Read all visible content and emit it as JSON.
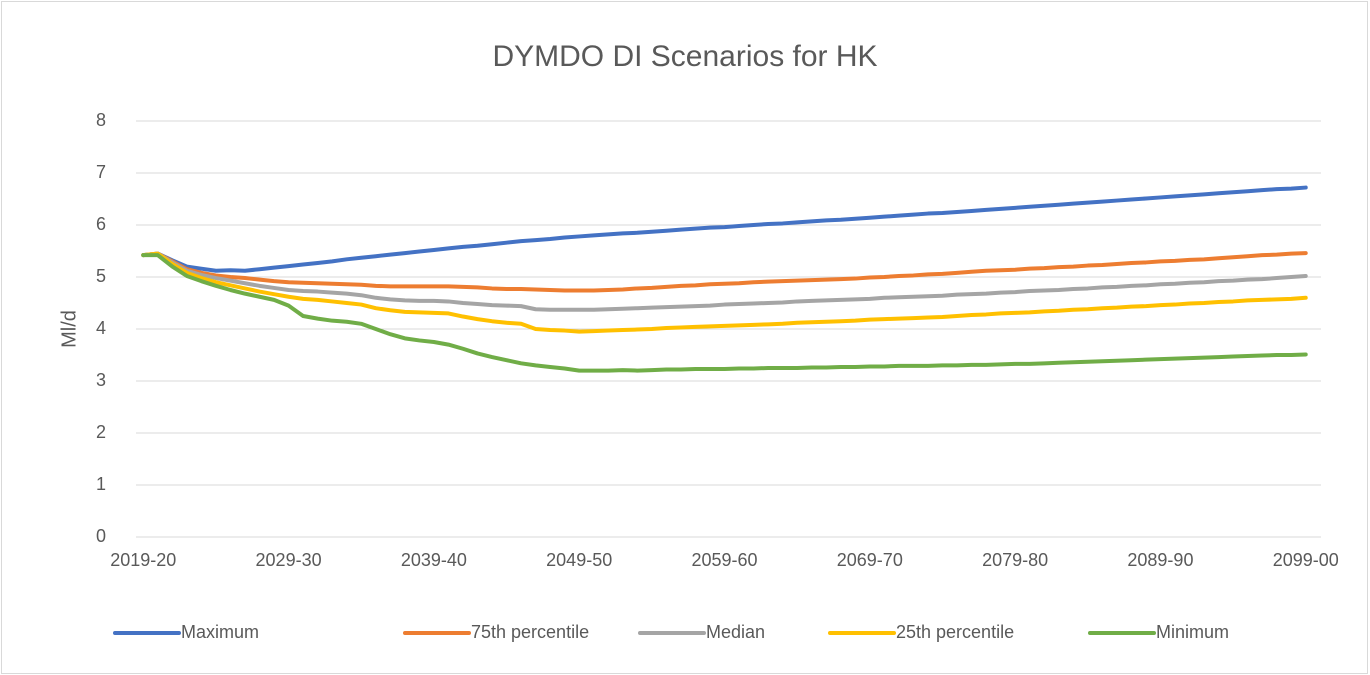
{
  "chart_data": {
    "type": "line",
    "title": "DYMDO DI Scenarios for HK",
    "y_label": "Ml/d",
    "categories": [
      "2019-20",
      null,
      null,
      null,
      null,
      null,
      null,
      null,
      null,
      null,
      "2029-30",
      null,
      null,
      null,
      null,
      null,
      null,
      null,
      null,
      null,
      "2039-40",
      null,
      null,
      null,
      null,
      null,
      null,
      null,
      null,
      null,
      "2049-50",
      null,
      null,
      null,
      null,
      null,
      null,
      null,
      null,
      null,
      "2059-60",
      null,
      null,
      null,
      null,
      null,
      null,
      null,
      null,
      null,
      "2069-70",
      null,
      null,
      null,
      null,
      null,
      null,
      null,
      null,
      null,
      "2079-80",
      null,
      null,
      null,
      null,
      null,
      null,
      null,
      null,
      null,
      "2089-90",
      null,
      null,
      null,
      null,
      null,
      null,
      null,
      null,
      null,
      "2099-00"
    ],
    "series": [
      {
        "name": "Maximum",
        "color": "#4472c4",
        "values": [
          5.42,
          5.45,
          5.32,
          5.2,
          5.16,
          5.12,
          5.13,
          5.12,
          5.15,
          5.18,
          5.21,
          5.24,
          5.27,
          5.3,
          5.34,
          5.37,
          5.4,
          5.43,
          5.46,
          5.49,
          5.52,
          5.55,
          5.58,
          5.6,
          5.63,
          5.66,
          5.69,
          5.71,
          5.73,
          5.76,
          5.78,
          5.8,
          5.82,
          5.84,
          5.85,
          5.87,
          5.89,
          5.91,
          5.93,
          5.95,
          5.96,
          5.98,
          6.0,
          6.02,
          6.03,
          6.05,
          6.07,
          6.09,
          6.1,
          6.12,
          6.14,
          6.16,
          6.18,
          6.2,
          6.22,
          6.23,
          6.25,
          6.27,
          6.29,
          6.31,
          6.33,
          6.35,
          6.37,
          6.39,
          6.41,
          6.43,
          6.45,
          6.47,
          6.49,
          6.51,
          6.53,
          6.55,
          6.57,
          6.59,
          6.61,
          6.63,
          6.65,
          6.67,
          6.69,
          6.7,
          6.72
        ]
      },
      {
        "name": "75th percentile",
        "color": "#ed7d31",
        "values": [
          5.42,
          5.45,
          5.3,
          5.15,
          5.08,
          5.03,
          5.0,
          4.98,
          4.95,
          4.92,
          4.9,
          4.89,
          4.88,
          4.87,
          4.86,
          4.85,
          4.83,
          4.82,
          4.82,
          4.82,
          4.82,
          4.82,
          4.81,
          4.8,
          4.78,
          4.77,
          4.77,
          4.76,
          4.75,
          4.74,
          4.74,
          4.74,
          4.75,
          4.76,
          4.78,
          4.79,
          4.81,
          4.83,
          4.84,
          4.86,
          4.87,
          4.88,
          4.9,
          4.91,
          4.92,
          4.93,
          4.94,
          4.95,
          4.96,
          4.97,
          4.99,
          5.0,
          5.02,
          5.03,
          5.05,
          5.06,
          5.08,
          5.1,
          5.12,
          5.13,
          5.14,
          5.16,
          5.17,
          5.19,
          5.2,
          5.22,
          5.23,
          5.25,
          5.27,
          5.28,
          5.3,
          5.31,
          5.33,
          5.34,
          5.36,
          5.38,
          5.4,
          5.42,
          5.43,
          5.45,
          5.46
        ]
      },
      {
        "name": "Median",
        "color": "#a5a5a5",
        "values": [
          5.42,
          5.45,
          5.28,
          5.12,
          5.04,
          4.98,
          4.93,
          4.88,
          4.83,
          4.79,
          4.75,
          4.73,
          4.72,
          4.7,
          4.68,
          4.65,
          4.6,
          4.57,
          4.55,
          4.54,
          4.54,
          4.53,
          4.5,
          4.48,
          4.46,
          4.45,
          4.44,
          4.38,
          4.37,
          4.37,
          4.37,
          4.37,
          4.38,
          4.39,
          4.4,
          4.41,
          4.42,
          4.43,
          4.44,
          4.45,
          4.47,
          4.48,
          4.49,
          4.5,
          4.51,
          4.53,
          4.54,
          4.55,
          4.56,
          4.57,
          4.58,
          4.6,
          4.61,
          4.62,
          4.63,
          4.64,
          4.66,
          4.67,
          4.68,
          4.7,
          4.71,
          4.73,
          4.74,
          4.75,
          4.77,
          4.78,
          4.8,
          4.81,
          4.83,
          4.84,
          4.86,
          4.87,
          4.89,
          4.9,
          4.92,
          4.93,
          4.95,
          4.96,
          4.98,
          5.0,
          5.02
        ]
      },
      {
        "name": "25th percentile",
        "color": "#ffc000",
        "values": [
          5.42,
          5.45,
          5.25,
          5.08,
          4.98,
          4.9,
          4.84,
          4.78,
          4.72,
          4.67,
          4.62,
          4.58,
          4.56,
          4.53,
          4.5,
          4.47,
          4.4,
          4.36,
          4.33,
          4.32,
          4.31,
          4.3,
          4.24,
          4.19,
          4.15,
          4.12,
          4.1,
          4.0,
          3.98,
          3.97,
          3.95,
          3.96,
          3.97,
          3.98,
          3.99,
          4.0,
          4.02,
          4.03,
          4.04,
          4.05,
          4.06,
          4.07,
          4.08,
          4.09,
          4.1,
          4.12,
          4.13,
          4.14,
          4.15,
          4.16,
          4.18,
          4.19,
          4.2,
          4.21,
          4.22,
          4.23,
          4.25,
          4.27,
          4.28,
          4.3,
          4.31,
          4.32,
          4.34,
          4.35,
          4.37,
          4.38,
          4.4,
          4.41,
          4.43,
          4.44,
          4.46,
          4.47,
          4.49,
          4.5,
          4.52,
          4.53,
          4.55,
          4.56,
          4.57,
          4.58,
          4.6
        ]
      },
      {
        "name": "Minimum",
        "color": "#70ad47",
        "values": [
          5.42,
          5.42,
          5.2,
          5.02,
          4.92,
          4.83,
          4.75,
          4.68,
          4.62,
          4.56,
          4.45,
          4.25,
          4.2,
          4.16,
          4.14,
          4.1,
          4.0,
          3.9,
          3.82,
          3.78,
          3.75,
          3.7,
          3.62,
          3.53,
          3.46,
          3.4,
          3.34,
          3.3,
          3.27,
          3.24,
          3.2,
          3.2,
          3.2,
          3.21,
          3.2,
          3.21,
          3.22,
          3.22,
          3.23,
          3.23,
          3.23,
          3.24,
          3.24,
          3.25,
          3.25,
          3.25,
          3.26,
          3.26,
          3.27,
          3.27,
          3.28,
          3.28,
          3.29,
          3.29,
          3.29,
          3.3,
          3.3,
          3.31,
          3.31,
          3.32,
          3.33,
          3.33,
          3.34,
          3.35,
          3.36,
          3.37,
          3.38,
          3.39,
          3.4,
          3.41,
          3.42,
          3.43,
          3.44,
          3.45,
          3.46,
          3.47,
          3.48,
          3.49,
          3.5,
          3.5,
          3.51
        ]
      }
    ],
    "ylim": [
      0,
      8
    ],
    "yticks": [
      0,
      1,
      2,
      3,
      4,
      5,
      6,
      7,
      8
    ],
    "grid": true,
    "legend": "bottom"
  }
}
